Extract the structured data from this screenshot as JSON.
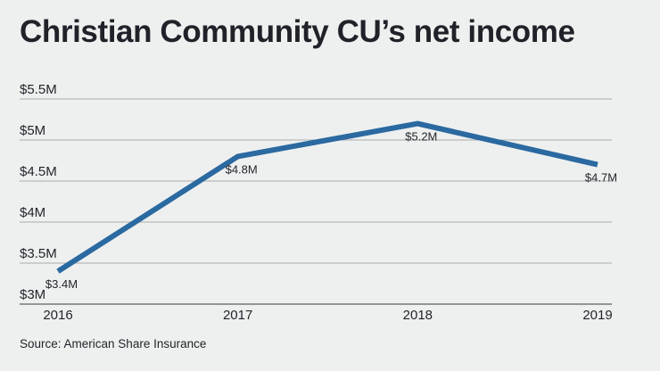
{
  "header": {
    "title": "Christian Community CU’s net income"
  },
  "footer": {
    "source": "Source: American Share Insurance"
  },
  "colors": {
    "background": "#eef0ef",
    "line": "#2b69a1",
    "text": "#1f2329",
    "gridline": "#a9adae"
  },
  "chart_data": {
    "type": "line",
    "title": "Christian Community CU’s net income",
    "xlabel": "",
    "ylabel": "",
    "categories": [
      "2016",
      "2017",
      "2018",
      "2019"
    ],
    "series": [
      {
        "values": [
          3.4,
          4.8,
          5.2,
          4.7
        ],
        "data_labels": [
          "$3.4M",
          "$4.8M",
          "$5.2M",
          "$4.7M"
        ]
      }
    ],
    "ylim": [
      3,
      5.5
    ],
    "yticks": [
      3,
      3.5,
      4,
      4.5,
      5,
      5.5
    ],
    "ytick_labels": [
      "$3M",
      "$3.5M",
      "$4M",
      "$4.5M",
      "$5M",
      "$5.5M"
    ],
    "grid": true,
    "legend": "none"
  }
}
